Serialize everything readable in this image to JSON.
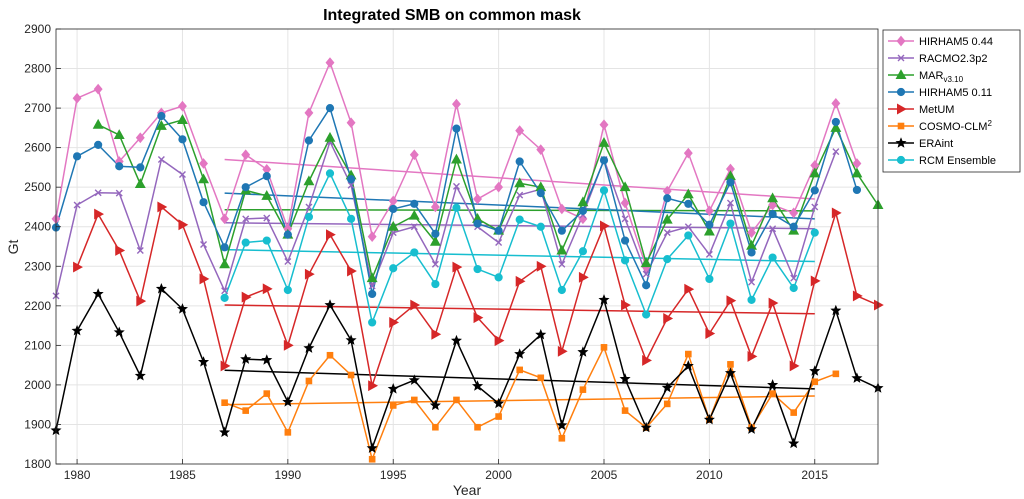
{
  "chart_data": {
    "type": "line",
    "title": "Integrated SMB on common mask",
    "xlabel": "Year",
    "ylabel": "Gt",
    "xlim": [
      1979,
      2018
    ],
    "ylim": [
      1800,
      2900
    ],
    "xticks": [
      1980,
      1985,
      1990,
      1995,
      2000,
      2005,
      2010,
      2015
    ],
    "yticks": [
      1800,
      1900,
      2000,
      2100,
      2200,
      2300,
      2400,
      2500,
      2600,
      2700,
      2800,
      2900
    ],
    "grid": true,
    "legend": "outside-right",
    "series": [
      {
        "name": "HIRHAM5 0.44",
        "color": "#e377c2",
        "marker": "diamond",
        "x": [
          1979,
          1980,
          1981,
          1982,
          1983,
          1984,
          1985,
          1986,
          1987,
          1988,
          1989,
          1990,
          1991,
          1992,
          1993,
          1994,
          1995,
          1996,
          1997,
          1998,
          1999,
          2000,
          2001,
          2002,
          2003,
          2004,
          2005,
          2006,
          2007,
          2008,
          2009,
          2010,
          2011,
          2012,
          2013,
          2014,
          2015,
          2016,
          2017
        ],
        "values": [
          2420,
          2725,
          2748,
          2565,
          2625,
          2688,
          2705,
          2560,
          2420,
          2582,
          2545,
          2395,
          2688,
          2815,
          2663,
          2375,
          2465,
          2582,
          2450,
          2710,
          2470,
          2500,
          2643,
          2595,
          2445,
          2420,
          2658,
          2460,
          2298,
          2490,
          2586,
          2440,
          2546,
          2385,
          2455,
          2435,
          2555,
          2712,
          2560
        ],
        "trend": {
          "x": [
            1987,
            2015
          ],
          "y": [
            2570,
            2470
          ]
        }
      },
      {
        "name": "RACMO2.3p2",
        "color": "#9467bd",
        "marker": "x",
        "x": [
          1979,
          1980,
          1981,
          1982,
          1983,
          1984,
          1985,
          1986,
          1987,
          1988,
          1989,
          1990,
          1991,
          1992,
          1993,
          1994,
          1995,
          1996,
          1997,
          1998,
          1999,
          2000,
          2001,
          2002,
          2003,
          2004,
          2005,
          2006,
          2007,
          2008,
          2009,
          2010,
          2011,
          2012,
          2013,
          2014,
          2015,
          2016
        ],
        "values": [
          2225,
          2455,
          2486,
          2485,
          2340,
          2570,
          2532,
          2355,
          2238,
          2420,
          2422,
          2312,
          2450,
          2615,
          2505,
          2250,
          2385,
          2400,
          2305,
          2502,
          2400,
          2360,
          2480,
          2495,
          2305,
          2430,
          2570,
          2420,
          2280,
          2385,
          2400,
          2330,
          2460,
          2260,
          2395,
          2270,
          2450,
          2590
        ],
        "trend": {
          "x": [
            1987,
            2015
          ],
          "y": [
            2410,
            2395
          ]
        }
      },
      {
        "name": "MAR_v3.10",
        "color": "#2ca02c",
        "marker": "triangle-up",
        "x": [
          1981,
          1982,
          1983,
          1984,
          1985,
          1986,
          1987,
          1988,
          1989,
          1990,
          1991,
          1992,
          1993,
          1994,
          1995,
          1996,
          1997,
          1998,
          1999,
          2000,
          2001,
          2002,
          2003,
          2004,
          2005,
          2006,
          2007,
          2008,
          2009,
          2010,
          2011,
          2012,
          2013,
          2014,
          2015,
          2016,
          2017,
          2018
        ],
        "values": [
          2658,
          2632,
          2508,
          2655,
          2670,
          2520,
          2305,
          2492,
          2478,
          2380,
          2515,
          2625,
          2530,
          2270,
          2400,
          2428,
          2362,
          2570,
          2420,
          2390,
          2510,
          2500,
          2340,
          2462,
          2612,
          2500,
          2308,
          2418,
          2482,
          2388,
          2528,
          2352,
          2472,
          2390,
          2535,
          2650,
          2535,
          2455
        ],
        "trend": {
          "x": [
            1987,
            2015
          ],
          "y": [
            2443,
            2440
          ]
        }
      },
      {
        "name": "HIRHAM5 0.11",
        "color": "#1f77b4",
        "marker": "circle",
        "x": [
          1979,
          1980,
          1981,
          1982,
          1983,
          1984,
          1985,
          1986,
          1987,
          1988,
          1989,
          1990,
          1991,
          1992,
          1993,
          1994,
          1995,
          1996,
          1997,
          1998,
          1999,
          2000,
          2001,
          2002,
          2003,
          2004,
          2005,
          2006,
          2007,
          2008,
          2009,
          2010,
          2011,
          2012,
          2013,
          2014,
          2015,
          2016,
          2017
        ],
        "values": [
          2398,
          2578,
          2607,
          2553,
          2550,
          2680,
          2621,
          2462,
          2348,
          2500,
          2528,
          2380,
          2618,
          2700,
          2520,
          2230,
          2445,
          2458,
          2382,
          2648,
          2408,
          2390,
          2565,
          2485,
          2390,
          2440,
          2568,
          2365,
          2252,
          2472,
          2458,
          2405,
          2512,
          2335,
          2432,
          2400,
          2492,
          2665,
          2493
        ],
        "trend": {
          "x": [
            1987,
            2015
          ],
          "y": [
            2485,
            2420
          ]
        }
      },
      {
        "name": "MetUM",
        "color": "#d62728",
        "marker": "triangle-right",
        "x": [
          1980,
          1981,
          1982,
          1983,
          1984,
          1985,
          1986,
          1987,
          1988,
          1989,
          1990,
          1991,
          1992,
          1993,
          1994,
          1995,
          1996,
          1997,
          1998,
          1999,
          2000,
          2001,
          2002,
          2003,
          2004,
          2005,
          2006,
          2007,
          2008,
          2009,
          2010,
          2011,
          2012,
          2013,
          2014,
          2015,
          2016,
          2017,
          2018
        ],
        "values": [
          2298,
          2432,
          2340,
          2212,
          2450,
          2405,
          2268,
          2048,
          2222,
          2243,
          2100,
          2280,
          2380,
          2288,
          1998,
          2158,
          2202,
          2128,
          2298,
          2170,
          2112,
          2262,
          2300,
          2085,
          2272,
          2402,
          2202,
          2062,
          2168,
          2242,
          2130,
          2213,
          2072,
          2207,
          2048,
          2263,
          2435,
          2225,
          2202
        ],
        "trend": {
          "x": [
            1987,
            2015
          ],
          "y": [
            2202,
            2180
          ]
        }
      },
      {
        "name": "COSMO-CLM^2",
        "color": "#ff7f0e",
        "marker": "square",
        "x": [
          1987,
          1988,
          1989,
          1990,
          1991,
          1992,
          1993,
          1994,
          1995,
          1996,
          1997,
          1998,
          1999,
          2000,
          2001,
          2002,
          2003,
          2004,
          2005,
          2006,
          2007,
          2008,
          2009,
          2010,
          2011,
          2012,
          2013,
          2014,
          2015,
          2016
        ],
        "values": [
          1955,
          1935,
          1978,
          1880,
          2010,
          2075,
          2025,
          1812,
          1948,
          1962,
          1893,
          1962,
          1893,
          1920,
          2038,
          2018,
          1865,
          1988,
          2095,
          1935,
          1892,
          1952,
          2078,
          1912,
          2052,
          1892,
          1978,
          1930,
          2008,
          2028
        ],
        "trend": {
          "x": [
            1987,
            2015
          ],
          "y": [
            1950,
            1972
          ]
        }
      },
      {
        "name": "ERAint",
        "color": "#000000",
        "marker": "star",
        "x": [
          1979,
          1980,
          1981,
          1982,
          1983,
          1984,
          1985,
          1986,
          1987,
          1988,
          1989,
          1990,
          1991,
          1992,
          1993,
          1994,
          1995,
          1996,
          1997,
          1998,
          1999,
          2000,
          2001,
          2002,
          2003,
          2004,
          2005,
          2006,
          2007,
          2008,
          2009,
          2010,
          2011,
          2012,
          2013,
          2014,
          2015,
          2016,
          2017,
          2018
        ],
        "values": [
          1885,
          2137,
          2230,
          2133,
          2023,
          2243,
          2192,
          2058,
          1880,
          2065,
          2063,
          1957,
          2093,
          2202,
          2113,
          1840,
          1990,
          2012,
          1948,
          2112,
          1997,
          1953,
          2078,
          2127,
          1898,
          2083,
          2215,
          2015,
          1892,
          1993,
          2048,
          1912,
          2030,
          1888,
          2000,
          1852,
          2035,
          2188,
          2017,
          1992
        ],
        "trend": {
          "x": [
            1987,
            2015
          ],
          "y": [
            2037,
            1990
          ]
        }
      },
      {
        "name": "RCM Ensemble",
        "color": "#17becf",
        "marker": "circle",
        "x": [
          1987,
          1988,
          1989,
          1990,
          1991,
          1992,
          1993,
          1994,
          1995,
          1996,
          1997,
          1998,
          1999,
          2000,
          2001,
          2002,
          2003,
          2004,
          2005,
          2006,
          2007,
          2008,
          2009,
          2010,
          2011,
          2012,
          2013,
          2014,
          2015
        ],
        "values": [
          2220,
          2360,
          2365,
          2240,
          2425,
          2535,
          2420,
          2158,
          2295,
          2335,
          2255,
          2448,
          2293,
          2272,
          2418,
          2400,
          2240,
          2338,
          2492,
          2315,
          2178,
          2318,
          2378,
          2268,
          2408,
          2215,
          2322,
          2245,
          2385
        ],
        "trend": {
          "x": [
            1987,
            2015
          ],
          "y": [
            2342,
            2312
          ]
        }
      }
    ]
  }
}
